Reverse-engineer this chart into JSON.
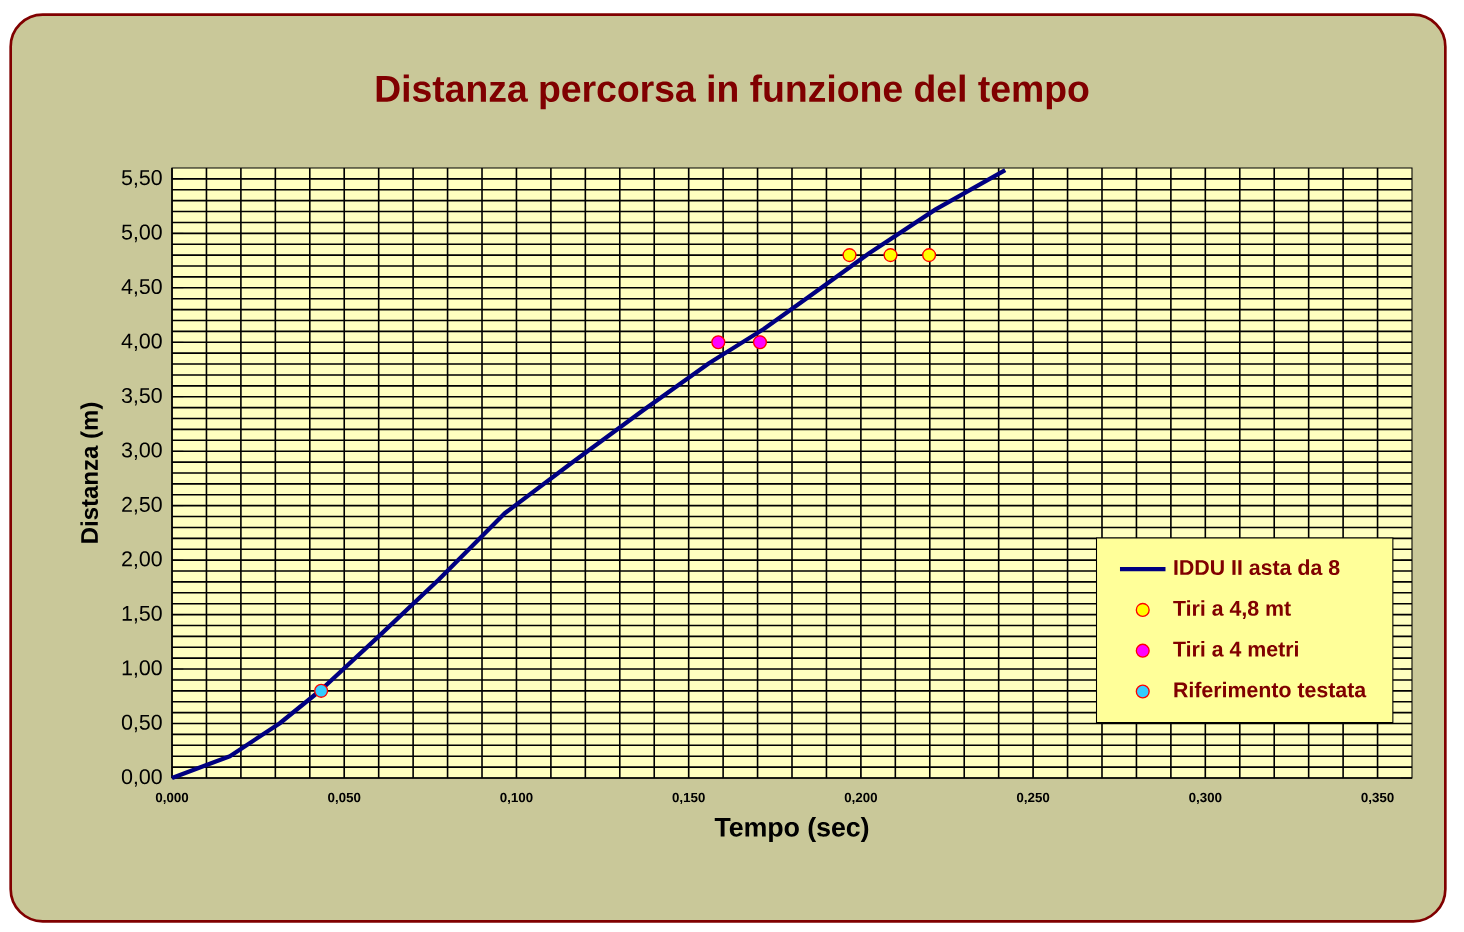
{
  "chart_data": {
    "type": "line",
    "title": "Distanza percorsa in funzione del tempo",
    "xlabel": "Tempo (sec)",
    "ylabel": "Distanza (m)",
    "xlim": [
      0,
      0.36
    ],
    "ylim": [
      0,
      5.6
    ],
    "xticks": [
      {
        "value": 0,
        "label": "0,000"
      },
      {
        "value": 0.05,
        "label": "0,050"
      },
      {
        "value": 0.1,
        "label": "0,100"
      },
      {
        "value": 0.15,
        "label": "0,150"
      },
      {
        "value": 0.2,
        "label": "0,200"
      },
      {
        "value": 0.25,
        "label": "0,250"
      },
      {
        "value": 0.3,
        "label": "0,300"
      },
      {
        "value": 0.35,
        "label": "0,350"
      }
    ],
    "yticks": [
      {
        "value": 0,
        "label": "0,00"
      },
      {
        "value": 0.5,
        "label": "0,50"
      },
      {
        "value": 1,
        "label": "1,00"
      },
      {
        "value": 1.5,
        "label": "1,50"
      },
      {
        "value": 2,
        "label": "2,00"
      },
      {
        "value": 2.5,
        "label": "2,50"
      },
      {
        "value": 3,
        "label": "3,00"
      },
      {
        "value": 3.5,
        "label": "3,50"
      },
      {
        "value": 4,
        "label": "4,00"
      },
      {
        "value": 4.5,
        "label": "4,50"
      },
      {
        "value": 5,
        "label": "5,00"
      },
      {
        "value": 5.5,
        "label": "5,50"
      }
    ],
    "grid": true,
    "legend": "bottom right",
    "series": [
      {
        "name": "IDDU II asta da 8",
        "color": "#000080",
        "marker": "none",
        "line_style": "solid",
        "x": [
          0,
          0.0168,
          0.0312,
          0.0433,
          0.06,
          0.0774,
          0.0966,
          0.1159,
          0.137,
          0.156,
          0.1717,
          0.185,
          0.2025,
          0.2217,
          0.2419
        ],
        "values": [
          0,
          0.2,
          0.5,
          0.81,
          1.3,
          1.82,
          2.43,
          2.89,
          3.38,
          3.81,
          4.12,
          4.42,
          4.82,
          5.22,
          5.58
        ]
      },
      {
        "name": "Tiri a 4,8 mt",
        "type": "scatter",
        "color": "#ffff00",
        "marker": "circle",
        "x": [
          0.1967,
          0.2086,
          0.2198
        ],
        "values": [
          4.8,
          4.8,
          4.8
        ]
      },
      {
        "name": "Tiri a 4 metri",
        "type": "scatter",
        "color": "#ff00ff",
        "marker": "circle",
        "x": [
          0.1586,
          0.1707
        ],
        "values": [
          4.0,
          4.0
        ]
      },
      {
        "name": "Riferimento testata",
        "type": "scatter",
        "color": "#33ccff",
        "marker": "circle",
        "x": [
          0.0433
        ],
        "values": [
          0.8
        ]
      }
    ]
  }
}
